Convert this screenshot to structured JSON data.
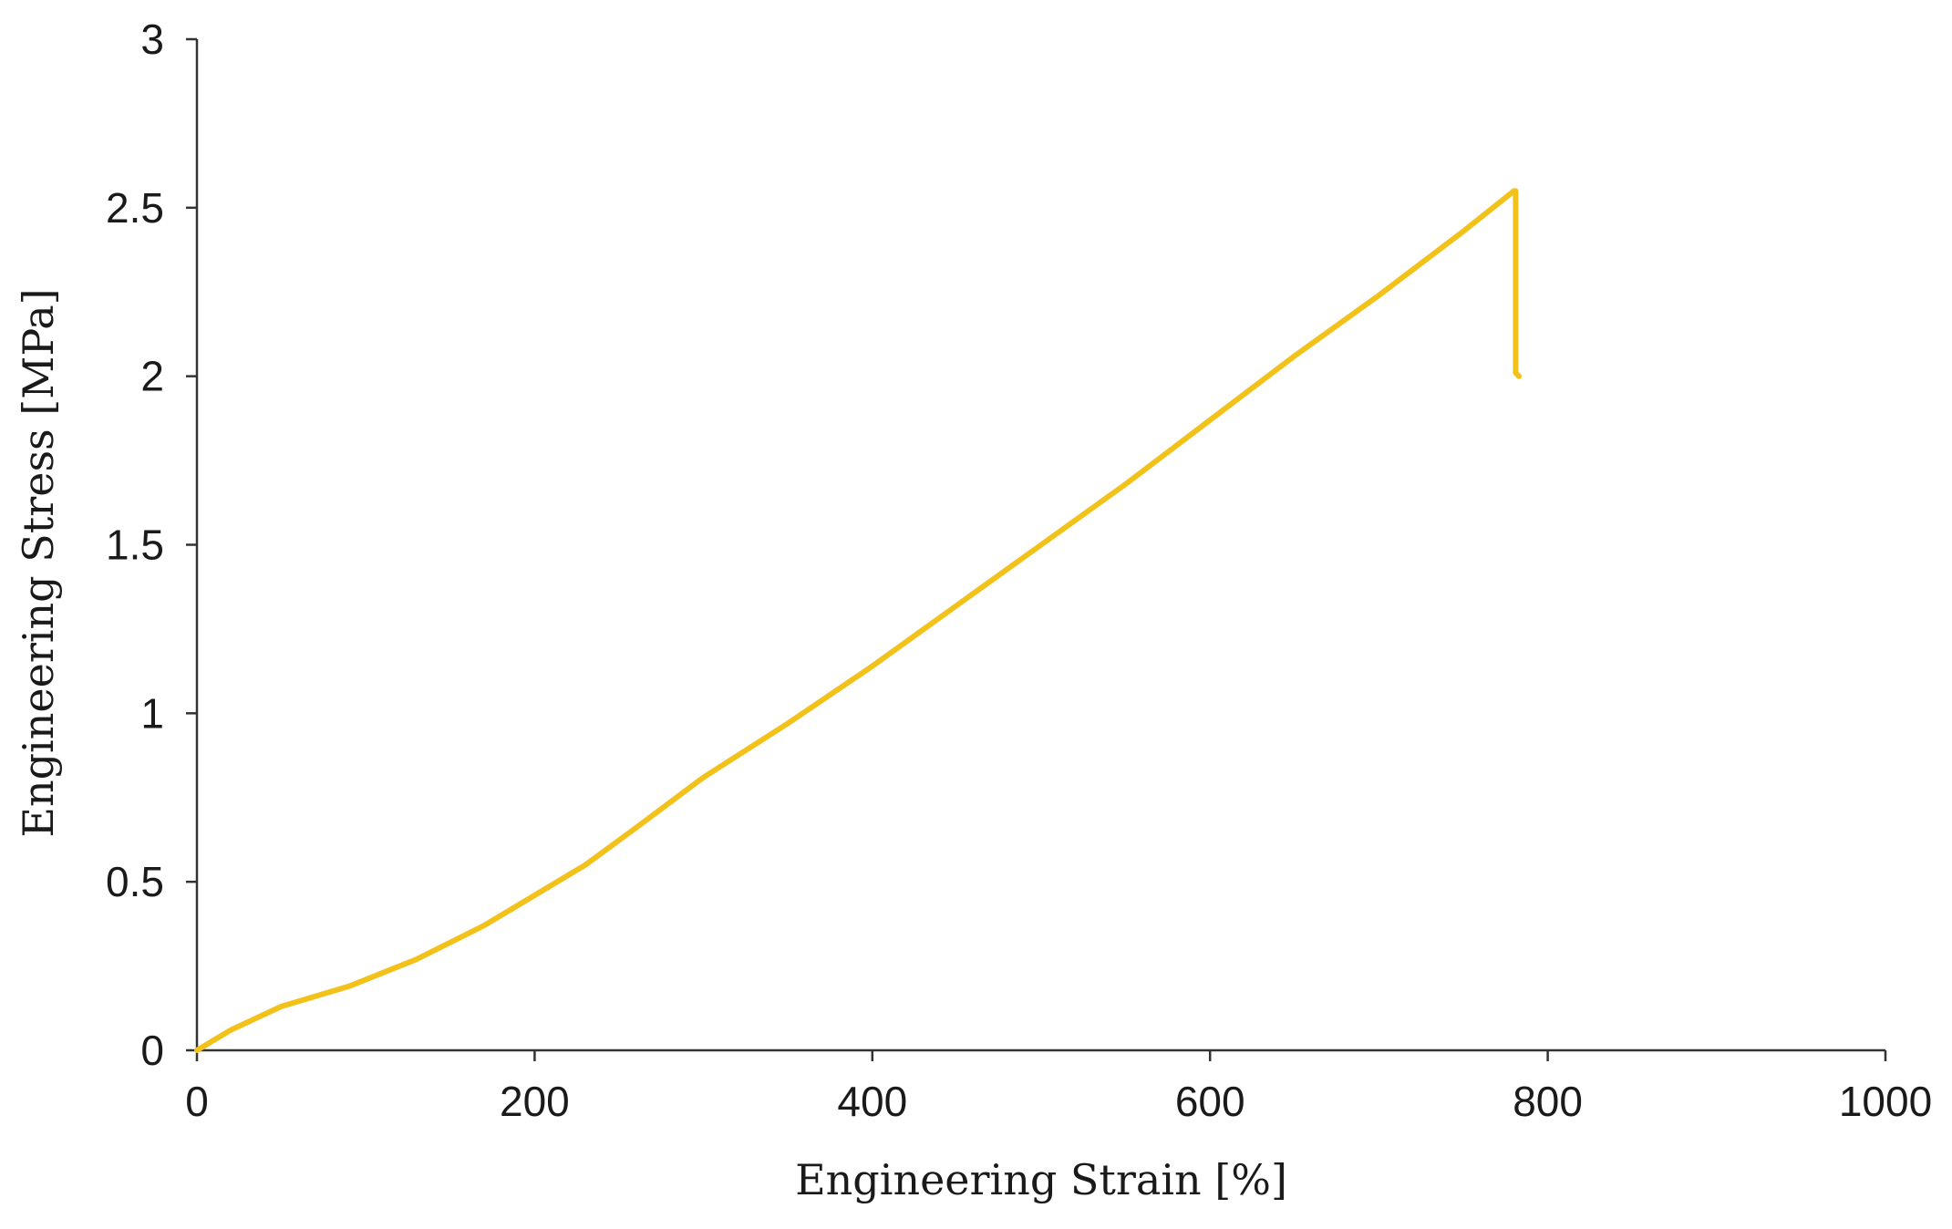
{
  "chart_data": {
    "type": "line",
    "title": "",
    "xlabel": "Engineering Strain [%]",
    "ylabel": "Engineering Stress  [MPa]",
    "xlim": [
      0,
      1000
    ],
    "ylim": [
      0,
      3
    ],
    "xticks": [
      0,
      200,
      400,
      600,
      800,
      1000
    ],
    "yticks": [
      0,
      0.5,
      1,
      1.5,
      2,
      2.5,
      3
    ],
    "xtick_labels": [
      "0",
      "200",
      "400",
      "600",
      "800",
      "1000"
    ],
    "ytick_labels": [
      "0",
      "0.5",
      "1",
      "1.5",
      "2",
      "2.5",
      "3"
    ],
    "grid": false,
    "legend": "none",
    "series": [
      {
        "color": "#F2C21B",
        "x": [
          0,
          20,
          50,
          90,
          130,
          170,
          200,
          230,
          260,
          300,
          350,
          400,
          450,
          500,
          550,
          600,
          650,
          700,
          750,
          780,
          781,
          781,
          783
        ],
        "y": [
          0,
          0.06,
          0.13,
          0.19,
          0.27,
          0.37,
          0.46,
          0.55,
          0.66,
          0.81,
          0.97,
          1.14,
          1.32,
          1.5,
          1.68,
          1.87,
          2.06,
          2.24,
          2.43,
          2.55,
          2.55,
          2.01,
          2.0
        ]
      }
    ]
  }
}
